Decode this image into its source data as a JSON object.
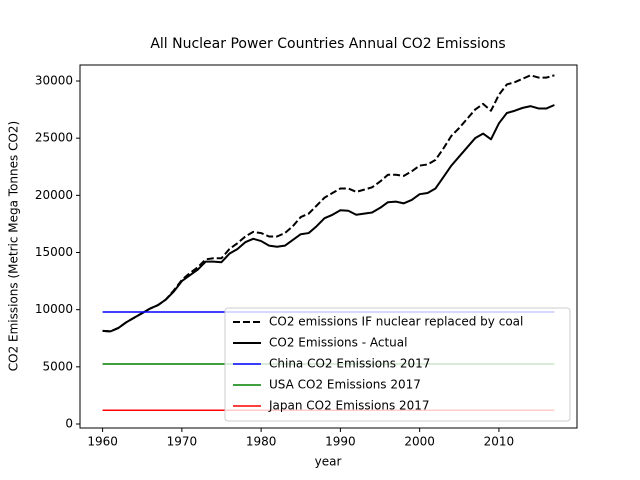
{
  "chart_data": {
    "type": "line",
    "title": "All Nuclear Power Countries Annual CO2 Emissions",
    "x_label": "year",
    "y_label": "CO2 Emissions (Metric Mega Tonnes CO2)",
    "x": [
      1960,
      1961,
      1962,
      1963,
      1964,
      1965,
      1966,
      1967,
      1968,
      1969,
      1970,
      1971,
      1972,
      1973,
      1974,
      1975,
      1976,
      1977,
      1978,
      1979,
      1980,
      1981,
      1982,
      1983,
      1984,
      1985,
      1986,
      1987,
      1988,
      1989,
      1990,
      1991,
      1992,
      1993,
      1994,
      1995,
      1996,
      1997,
      1998,
      1999,
      2000,
      2001,
      2002,
      2003,
      2004,
      2005,
      2006,
      2007,
      2008,
      2009,
      2010,
      2011,
      2012,
      2013,
      2014,
      2015,
      2016,
      2017
    ],
    "series": [
      {
        "name": "CO2 emissions IF nuclear replaced by coal",
        "color": "#000000",
        "linestyle": "dashed",
        "linewidth": 2,
        "values": [
          8150,
          8100,
          8400,
          8900,
          9300,
          9700,
          10100,
          10400,
          10900,
          11700,
          12600,
          13200,
          13700,
          14400,
          14500,
          14500,
          15300,
          15800,
          16400,
          16800,
          16700,
          16400,
          16400,
          16700,
          17300,
          18100,
          18400,
          19100,
          19800,
          20200,
          20600,
          20600,
          20300,
          20500,
          20700,
          21200,
          21800,
          21800,
          21700,
          22100,
          22600,
          22700,
          23100,
          24100,
          25200,
          25900,
          26700,
          27500,
          28000,
          27400,
          28800,
          29700,
          29900,
          30200,
          30500,
          30300,
          30300,
          30500
        ]
      },
      {
        "name": "CO2 Emissions - Actual",
        "color": "#000000",
        "linestyle": "solid",
        "linewidth": 2,
        "values": [
          8150,
          8100,
          8400,
          8900,
          9300,
          9700,
          10100,
          10400,
          10900,
          11600,
          12500,
          13000,
          13500,
          14200,
          14200,
          14150,
          14900,
          15300,
          15900,
          16200,
          16000,
          15600,
          15500,
          15600,
          16100,
          16600,
          16700,
          17300,
          18000,
          18300,
          18700,
          18650,
          18300,
          18400,
          18500,
          18900,
          19400,
          19450,
          19300,
          19600,
          20100,
          20200,
          20600,
          21600,
          22600,
          23400,
          24200,
          25000,
          25400,
          24900,
          26300,
          27200,
          27400,
          27650,
          27800,
          27600,
          27600,
          27900
        ]
      },
      {
        "name": "China CO2 Emissions 2017",
        "color": "#0000ff",
        "linestyle": "solid",
        "linewidth": 1.5,
        "x": [
          1960,
          2017
        ],
        "values": [
          9800,
          9800
        ]
      },
      {
        "name": "USA CO2 Emissions 2017",
        "color": "#008000",
        "linestyle": "solid",
        "linewidth": 1.5,
        "x": [
          1960,
          2017
        ],
        "values": [
          5250,
          5250
        ]
      },
      {
        "name": "Japan CO2 Emissions 2017",
        "color": "#ff0000",
        "linestyle": "solid",
        "linewidth": 1.5,
        "x": [
          1960,
          2017
        ],
        "values": [
          1200,
          1200
        ]
      }
    ],
    "xlim": [
      1957.15,
      2019.85
    ],
    "ylim": [
      -350,
      31400
    ],
    "xticks": [
      1960,
      1970,
      1980,
      1990,
      2000,
      2010
    ],
    "yticks": [
      0,
      5000,
      10000,
      15000,
      20000,
      25000,
      30000
    ],
    "legend": "lower right",
    "grid": false
  }
}
